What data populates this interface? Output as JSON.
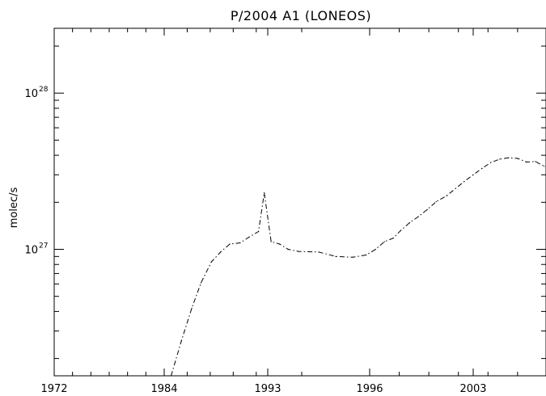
{
  "chart_data": {
    "type": "line",
    "title": "P/2004 A1 (LONEOS)",
    "xlabel": "",
    "ylabel": "molec/s",
    "x_tick_labels": [
      "1972",
      "1984",
      "1993",
      "1996",
      "2003"
    ],
    "y_scale": "log",
    "y_ticks": [
      {
        "value": 1e+27,
        "base": "10",
        "exp": "27"
      },
      {
        "value": 1e+28,
        "base": "10",
        "exp": "28"
      }
    ],
    "ylim": [
      1.55e+26,
      2.6e+28
    ],
    "line_style": "dash-dot",
    "grid": false,
    "series": [
      {
        "x": [
          1984.6,
          1985.5,
          1986.4,
          1987.2,
          1988.1,
          1988.9,
          1989.7,
          1990.6,
          1991.4,
          1992.2,
          1992.7,
          1993.1,
          1993.35,
          1993.6,
          1993.9,
          1994.5,
          1995.0,
          1995.5,
          1995.9,
          1996.4,
          1997.0,
          1997.6,
          1998.1,
          1998.7,
          1999.3,
          1999.9,
          2000.5,
          2001.2,
          2001.8,
          2002.4,
          2003.0,
          2003.6,
          2004.2,
          2004.8,
          2005.4,
          2006.0,
          2006.6,
          2007.2,
          2007.8
        ],
        "y": [
          1.55e+26,
          2.6e+26,
          4.2e+26,
          6.1e+26,
          8.3e+26,
          9.6e+26,
          1.08e+27,
          1.1e+27,
          1.2e+27,
          1.3e+27,
          2.3e+27,
          1.12e+27,
          1.08e+27,
          1e+27,
          9.7e+26,
          9.6e+26,
          9e+26,
          8.9e+26,
          9.2e+26,
          1e+27,
          1.12e+27,
          1.18e+27,
          1.32e+27,
          1.48e+27,
          1.62e+27,
          1.8e+27,
          2.02e+27,
          2.2e+27,
          2.45e+27,
          2.72e+27,
          3e+27,
          3.3e+27,
          3.6e+27,
          3.78e+27,
          3.85e+27,
          3.82e+27,
          3.62e+27,
          3.65e+27,
          3.4e+27
        ]
      }
    ]
  }
}
